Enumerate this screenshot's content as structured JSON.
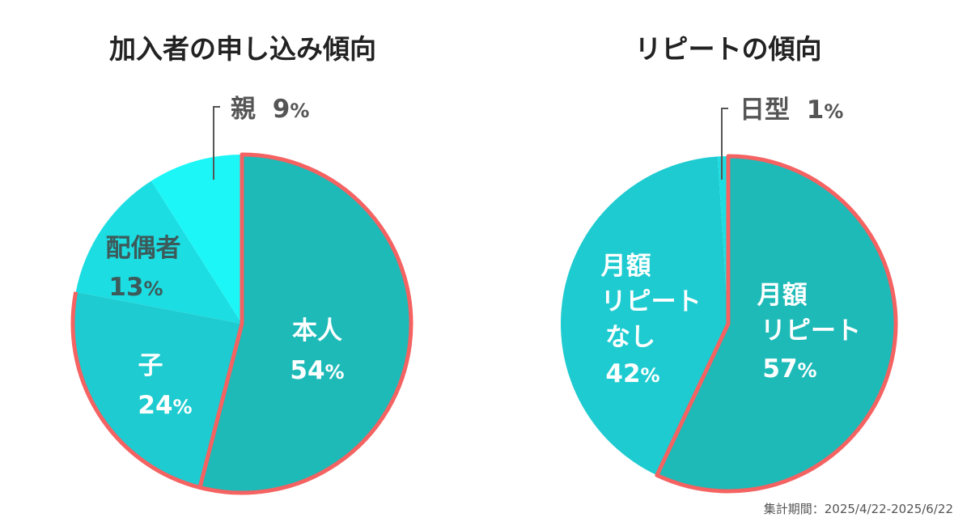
{
  "chart_data": [
    {
      "type": "pie",
      "title": "加入者の申し込み傾向",
      "slices": [
        {
          "label": "本人",
          "value": 54,
          "color": "#1dbab8"
        },
        {
          "label": "子",
          "value": 24,
          "color": "#1dcbd0"
        },
        {
          "label": "配偶者",
          "value": 13,
          "color": "#1cdde2"
        },
        {
          "label": "親",
          "value": 9,
          "color": "#1df6f7"
        }
      ],
      "highlight_color": "#f46262"
    },
    {
      "type": "pie",
      "title": "リピートの傾向",
      "slices": [
        {
          "label": "月額\nリピート",
          "value": 57,
          "color": "#1dbab8"
        },
        {
          "label": "月額\nリピート\nなし",
          "value": 42,
          "color": "#1dcbd0"
        },
        {
          "label": "日型",
          "value": 1,
          "color": "#1cdde2"
        }
      ],
      "highlight_color": "#f46262"
    }
  ],
  "footer": "集計期間：2025/4/22-2025/6/22"
}
